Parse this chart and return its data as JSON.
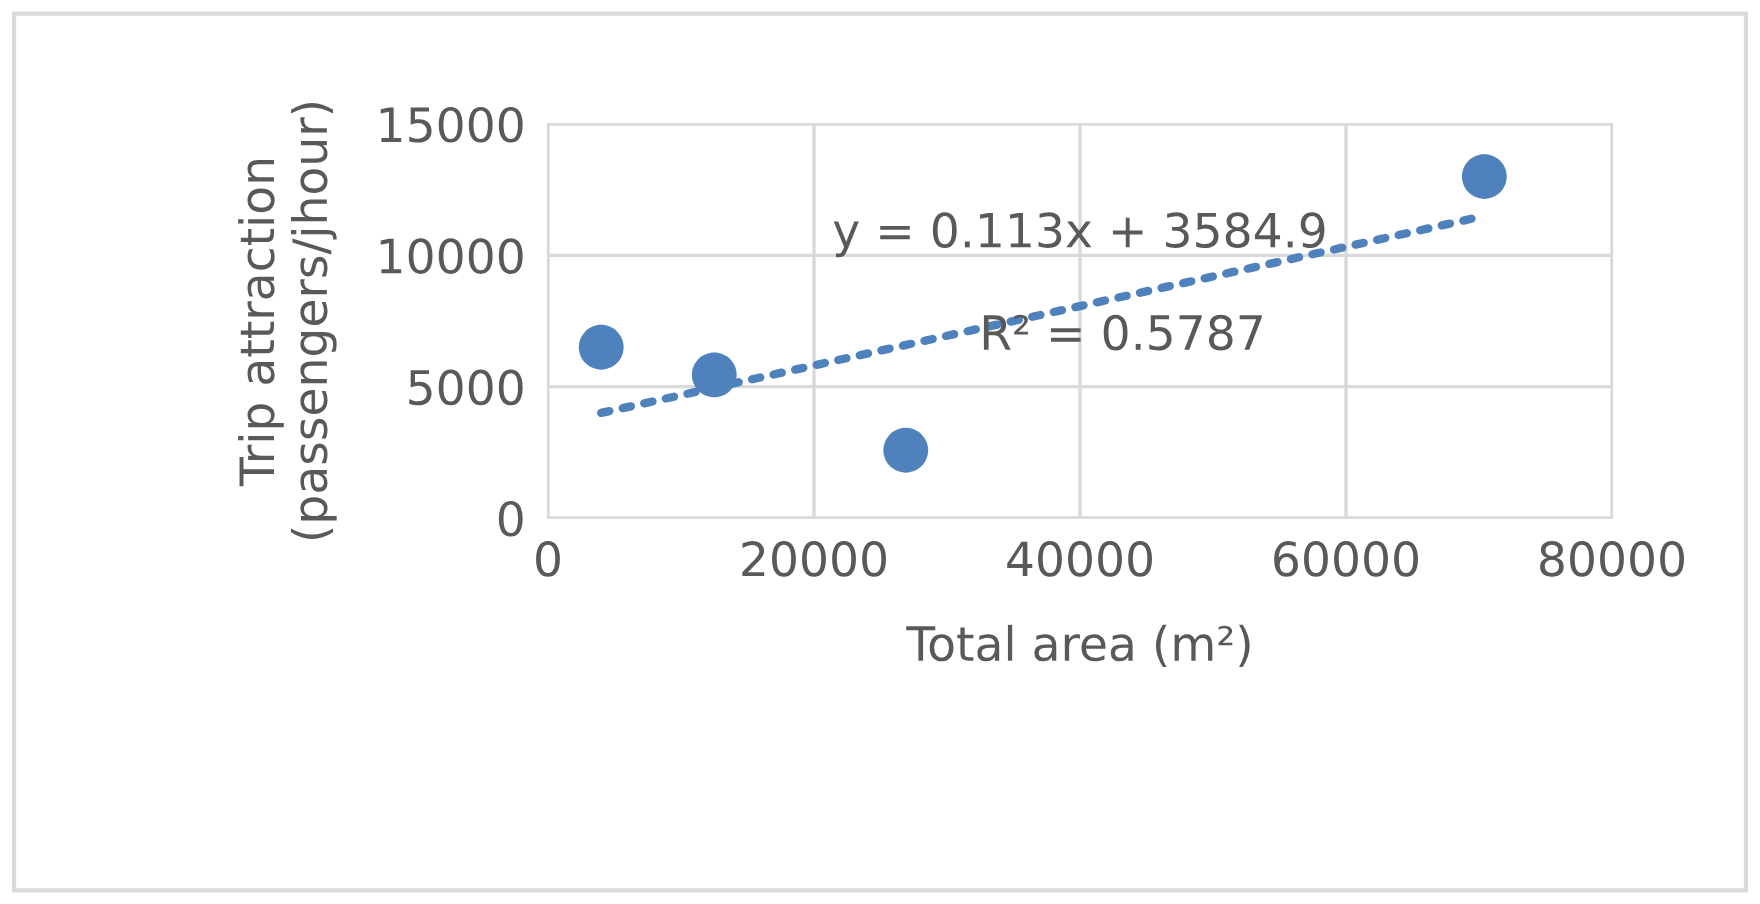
{
  "chart_data": {
    "type": "scatter",
    "xlabel": "Total area (m²)",
    "ylabel": "Trip attraction\n(passengers/jhour)",
    "series": [
      {
        "color": "#4f81bd",
        "marker": "circle",
        "x": [
          4000,
          12500,
          26900,
          70400
        ],
        "values": [
          6500,
          5450,
          2580,
          13000
        ]
      },
      {
        "type": "line",
        "color": "#4f81bd",
        "line_style": "dotted",
        "x": [
          4000,
          70400
        ],
        "values": [
          4000,
          11500
        ]
      }
    ],
    "annotations": [
      "y = 0.113x + 3584.9",
      "R² = 0.5787"
    ],
    "xlim": [
      0,
      80000
    ],
    "ylim": [
      0,
      15000
    ],
    "xticks": [
      0,
      20000,
      40000,
      60000,
      80000
    ],
    "yticks": [
      0,
      5000,
      10000,
      15000
    ],
    "grid": true
  }
}
